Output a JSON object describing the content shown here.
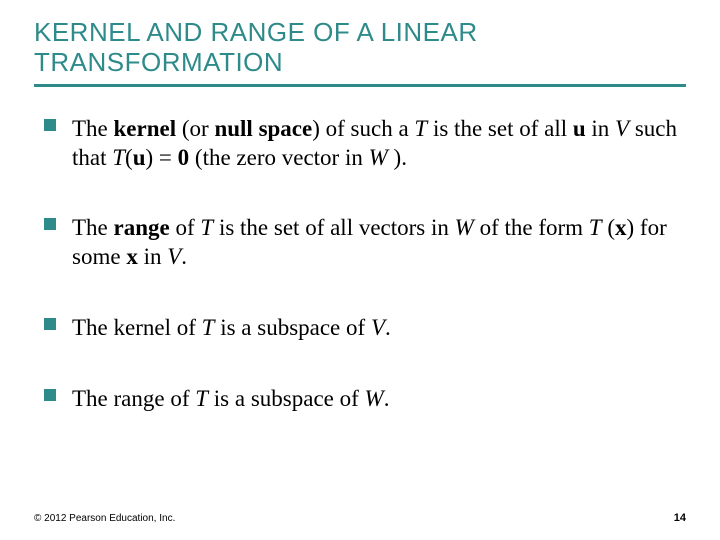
{
  "title": "KERNEL AND RANGE OF A LINEAR TRANSFORMATION",
  "colors": {
    "accent": "#2f8a8a",
    "text": "#000000",
    "background": "#ffffff"
  },
  "typography": {
    "title_font": "Arial",
    "title_size_pt": 26,
    "body_font": "Times New Roman",
    "body_size_pt": 23,
    "footer_size_pt": 10
  },
  "bullets": [
    {
      "pre1": "The ",
      "b1": "kernel",
      "mid1": " (or ",
      "b2": "null space",
      "mid2": ") of such a ",
      "i1": "T",
      "mid3": " is the set of all ",
      "b3": "u",
      "mid4": " in ",
      "i2": "V",
      "mid5": " such that ",
      "eq_T": "T",
      "eq_open": "(",
      "eq_u": "u",
      "eq_mid": ") = ",
      "eq_zero": "0",
      "mid6": " (the zero vector in ",
      "i3": "W",
      "tail": " )."
    },
    {
      "pre1": "The ",
      "b1": "range",
      "mid1": " of ",
      "i1": "T",
      "mid2": " is the set of all vectors in ",
      "i2": "W",
      "mid3": " of the form ",
      "i3": "T",
      "mid4": " (",
      "b2": "x",
      "mid5": ") for some ",
      "b3": "x",
      "mid6": " in ",
      "i4": "V",
      "tail": "."
    },
    {
      "pre1": "The kernel of ",
      "i1": "T",
      "mid1": " is a subspace of ",
      "i2": "V",
      "tail": "."
    },
    {
      "pre1": "The range of ",
      "i1": "T",
      "mid1": " is a subspace of ",
      "i2": "W",
      "tail": "."
    }
  ],
  "footer": "© 2012 Pearson Education, Inc.",
  "page_number": "14"
}
